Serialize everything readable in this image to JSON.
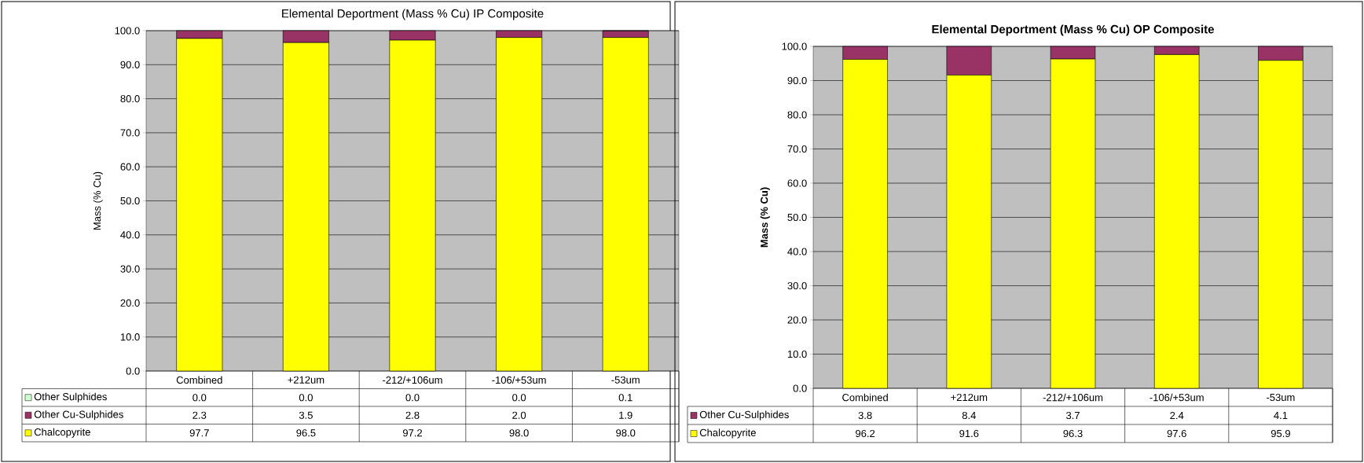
{
  "chart_data": [
    {
      "type": "bar",
      "stacked": true,
      "title": "Elemental Deportment (Mass % Cu) IP Composite",
      "ylabel": "Mass (% Cu)",
      "categories": [
        "Combined",
        "+212um",
        "-212/+106um",
        "-106/+53um",
        "-53um"
      ],
      "series": [
        {
          "name": "Chalcopyrite",
          "color": "#ffff00",
          "values": [
            97.7,
            96.5,
            97.2,
            98.0,
            98.0
          ],
          "value_labels": [
            "97.7",
            "96.5",
            "97.2",
            "98.0",
            "98.0"
          ]
        },
        {
          "name": "Other Cu-Sulphides",
          "color": "#993366",
          "values": [
            2.3,
            3.5,
            2.8,
            2.0,
            1.9
          ],
          "value_labels": [
            "2.3",
            "3.5",
            "2.8",
            "2.0",
            "1.9"
          ]
        },
        {
          "name": "Other Sulphides",
          "color": "#ccffcc",
          "values": [
            0.0,
            0.0,
            0.0,
            0.0,
            0.1
          ],
          "value_labels": [
            "0.0",
            "0.0",
            "0.0",
            "0.0",
            "0.1"
          ]
        }
      ],
      "ylim": [
        0,
        100
      ],
      "yticks": [
        {
          "value": 0,
          "label": "0.0"
        },
        {
          "value": 10,
          "label": "10.0"
        },
        {
          "value": 20,
          "label": "20.0"
        },
        {
          "value": 30,
          "label": "30.0"
        },
        {
          "value": 40,
          "label": "40.0"
        },
        {
          "value": 50,
          "label": "50.0"
        },
        {
          "value": 60,
          "label": "60.0"
        },
        {
          "value": 70,
          "label": "70.0"
        },
        {
          "value": 80,
          "label": "80.0"
        },
        {
          "value": 90,
          "label": "90.0"
        },
        {
          "value": 100,
          "label": "100.0"
        }
      ],
      "grid": "y",
      "legend": "bottom"
    },
    {
      "type": "bar",
      "stacked": true,
      "title": "Elemental Deportment (Mass % Cu) OP Composite",
      "ylabel": "Mass (% Cu)",
      "categories": [
        "Combined",
        "+212um",
        "-212/+106um",
        "-106/+53um",
        "-53um"
      ],
      "series": [
        {
          "name": "Chalcopyrite",
          "color": "#ffff00",
          "values": [
            96.2,
            91.6,
            96.3,
            97.6,
            95.9
          ],
          "value_labels": [
            "96.2",
            "91.6",
            "96.3",
            "97.6",
            "95.9"
          ]
        },
        {
          "name": "Other Cu-Sulphides",
          "color": "#993366",
          "values": [
            3.8,
            8.4,
            3.7,
            2.4,
            4.1
          ],
          "value_labels": [
            "3.8",
            "8.4",
            "3.7",
            "2.4",
            "4.1"
          ]
        }
      ],
      "ylim": [
        0,
        100
      ],
      "yticks": [
        {
          "value": 0,
          "label": "0.0"
        },
        {
          "value": 10,
          "label": "10.0"
        },
        {
          "value": 20,
          "label": "20.0"
        },
        {
          "value": 30,
          "label": "30.0"
        },
        {
          "value": 40,
          "label": "40.0"
        },
        {
          "value": 50,
          "label": "50.0"
        },
        {
          "value": 60,
          "label": "60.0"
        },
        {
          "value": 70,
          "label": "70.0"
        },
        {
          "value": 80,
          "label": "80.0"
        },
        {
          "value": 90,
          "label": "90.0"
        },
        {
          "value": 100,
          "label": "100.0"
        }
      ],
      "grid": "y",
      "legend": "bottom"
    }
  ]
}
